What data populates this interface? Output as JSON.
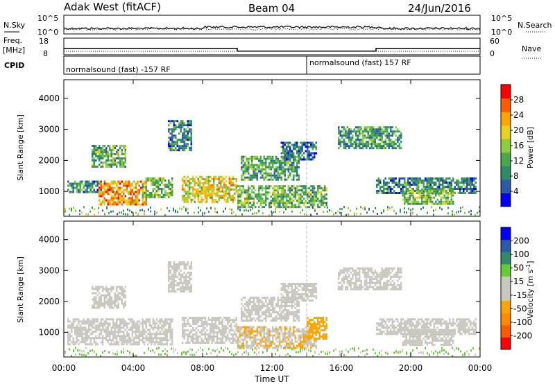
{
  "header": {
    "station": "Adak West (fitACF)",
    "beam": "Beam 04",
    "date": "24/Jun/2016"
  },
  "noise_panel": {
    "left_label": "N.Sky",
    "right_label": "N.Search",
    "left_ticks": [
      "10^5",
      "10^0"
    ],
    "right_ticks": [
      "10^5",
      "10^0"
    ]
  },
  "freq_panel": {
    "left_label_line1": "Freq.",
    "left_label_line2": "[MHz]",
    "right_label": "Nave",
    "left_ticks": [
      "18",
      "8"
    ],
    "right_ticks": [
      "60",
      "0"
    ],
    "freq_levels_mhz": [
      {
        "from": "00:00",
        "to": "10:00",
        "value": 12.2
      },
      {
        "from": "10:00",
        "to": "18:00",
        "value": 10.4
      },
      {
        "from": "18:00",
        "to": "24:00",
        "value": 12.2
      }
    ]
  },
  "cpid_panel": {
    "label": "CPID",
    "segments": [
      {
        "text": "normalsound (fast) -157 RF",
        "from": "00:00",
        "to": "14:00"
      },
      {
        "text": "normalsound (fast) 157 RF",
        "from": "14:00",
        "to": "24:00"
      }
    ]
  },
  "chart_data": [
    {
      "type": "heatmap",
      "quantity": "Power",
      "ylabel": "Slant Range [km]",
      "xlabel": "",
      "y_ticks": [
        "1000",
        "2000",
        "3000",
        "4000"
      ],
      "ylim": [
        200,
        4600
      ],
      "xlim": [
        "00:00",
        "24:00"
      ],
      "colorbar_label": "Power [dB]",
      "colorbar_ticks": [
        "28",
        "24",
        "20",
        "16",
        "12",
        "8",
        "4"
      ],
      "colorscale": [
        "#0000ff",
        "#2a5aa8",
        "#2f8a6a",
        "#4aa84a",
        "#8ccf3c",
        "#e8d020",
        "#ffa500",
        "#ff5a00",
        "#ff0000"
      ],
      "clim": [
        0,
        30
      ],
      "echo_regions": [
        {
          "t_start_h": 0.2,
          "t_end_h": 2.2,
          "r_start_km": 950,
          "r_end_km": 1350,
          "value": 9
        },
        {
          "t_start_h": 2.0,
          "t_end_h": 4.8,
          "r_start_km": 550,
          "r_end_km": 1350,
          "value": 22
        },
        {
          "t_start_h": 4.5,
          "t_end_h": 6.2,
          "r_start_km": 800,
          "r_end_km": 1450,
          "value": 13
        },
        {
          "t_start_h": 6.8,
          "t_end_h": 10.0,
          "r_start_km": 650,
          "r_end_km": 1500,
          "value": 18
        },
        {
          "t_start_h": 10.0,
          "t_end_h": 15.2,
          "r_start_km": 500,
          "r_end_km": 1200,
          "value": 12
        },
        {
          "t_start_h": 10.2,
          "t_end_h": 13.6,
          "r_start_km": 1350,
          "r_end_km": 2150,
          "value": 11
        },
        {
          "t_start_h": 12.5,
          "t_end_h": 14.6,
          "r_start_km": 2000,
          "r_end_km": 2600,
          "value": 7
        },
        {
          "t_start_h": 1.6,
          "t_end_h": 3.6,
          "r_start_km": 1800,
          "r_end_km": 2500,
          "value": 12
        },
        {
          "t_start_h": 6.0,
          "t_end_h": 7.4,
          "r_start_km": 2300,
          "r_end_km": 3300,
          "value": 8
        },
        {
          "t_start_h": 15.8,
          "t_end_h": 19.5,
          "r_start_km": 2400,
          "r_end_km": 3100,
          "value": 10
        },
        {
          "t_start_h": 18.0,
          "t_end_h": 23.8,
          "r_start_km": 950,
          "r_end_km": 1450,
          "value": 8
        },
        {
          "t_start_h": 19.5,
          "t_end_h": 22.5,
          "r_start_km": 600,
          "r_end_km": 1100,
          "value": 14
        }
      ]
    },
    {
      "type": "heatmap",
      "quantity": "Velocity",
      "ylabel": "Slant Range [km]",
      "xlabel": "Time UT",
      "y_ticks": [
        "1000",
        "2000",
        "3000",
        "4000"
      ],
      "x_ticks": [
        "00:00",
        "04:00",
        "08:00",
        "12:00",
        "16:00",
        "20:00",
        "00:00"
      ],
      "ylim": [
        200,
        4600
      ],
      "xlim": [
        "00:00",
        "24:00"
      ],
      "colorbar_label": "Velocity [m s^-1]",
      "colorbar_ticks": [
        "200",
        "100",
        "50",
        "15",
        "-15",
        "-50",
        "-100",
        "-200"
      ],
      "colorscale": [
        "#ff0000",
        "#ff5a00",
        "#ff8c00",
        "#ffa500",
        "#c8c8c0",
        "#c8c8c0",
        "#66cc33",
        "#2f8a6a",
        "#2a5aa8",
        "#0000ff"
      ],
      "clim": [
        -250,
        250
      ],
      "echo_regions": [
        {
          "t_start_h": 0.2,
          "t_end_h": 6.2,
          "r_start_km": 600,
          "r_end_km": 1450,
          "value": 0
        },
        {
          "t_start_h": 6.8,
          "t_end_h": 10.0,
          "r_start_km": 650,
          "r_end_km": 1500,
          "value": 0
        },
        {
          "t_start_h": 10.0,
          "t_end_h": 14.6,
          "r_start_km": 500,
          "r_end_km": 1200,
          "value": -45
        },
        {
          "t_start_h": 14.0,
          "t_end_h": 15.2,
          "r_start_km": 800,
          "r_end_km": 1500,
          "value": -80
        },
        {
          "t_start_h": 10.2,
          "t_end_h": 13.6,
          "r_start_km": 1350,
          "r_end_km": 2150,
          "value": -10
        },
        {
          "t_start_h": 12.5,
          "t_end_h": 14.6,
          "r_start_km": 2000,
          "r_end_km": 2600,
          "value": 0
        },
        {
          "t_start_h": 1.6,
          "t_end_h": 3.6,
          "r_start_km": 1800,
          "r_end_km": 2500,
          "value": 0
        },
        {
          "t_start_h": 6.0,
          "t_end_h": 7.4,
          "r_start_km": 2300,
          "r_end_km": 3300,
          "value": 0
        },
        {
          "t_start_h": 15.8,
          "t_end_h": 19.5,
          "r_start_km": 2400,
          "r_end_km": 3100,
          "value": 0
        },
        {
          "t_start_h": 18.0,
          "t_end_h": 23.8,
          "r_start_km": 950,
          "r_end_km": 1450,
          "value": 0
        },
        {
          "t_start_h": 19.5,
          "t_end_h": 22.5,
          "r_start_km": 600,
          "r_end_km": 1100,
          "value": 0
        }
      ]
    }
  ]
}
